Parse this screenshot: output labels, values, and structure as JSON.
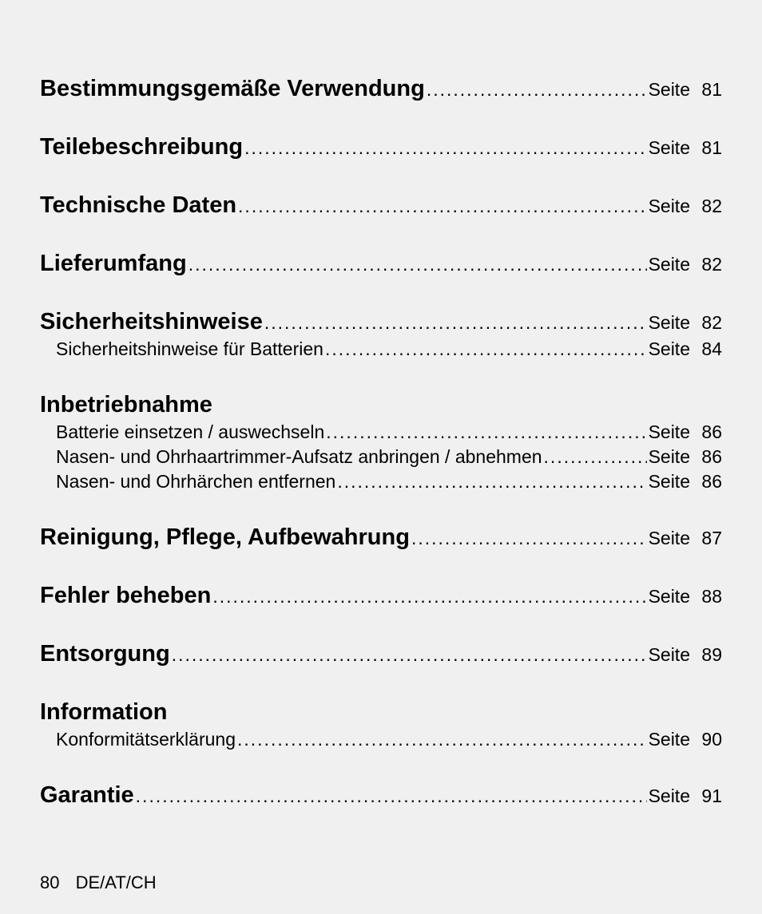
{
  "page_label": "Seite",
  "sections": [
    {
      "title": "Bestimmungsgemäße Verwendung",
      "page": "81",
      "subs": []
    },
    {
      "title": "Teilebeschreibung",
      "page": "81",
      "subs": []
    },
    {
      "title": "Technische Daten",
      "page": "82",
      "subs": []
    },
    {
      "title": "Lieferumfang",
      "page": "82",
      "subs": []
    },
    {
      "title": "Sicherheitshinweise",
      "page": "82",
      "subs": [
        {
          "label": "Sicherheitshinweise für Batterien",
          "page": "84"
        }
      ]
    },
    {
      "title": "Inbetriebnahme",
      "page": null,
      "subs": [
        {
          "label": "Batterie einsetzen / auswechseln",
          "page": "86"
        },
        {
          "label": "Nasen- und Ohrhaartrimmer-Aufsatz anbringen / abnehmen",
          "page": "86"
        },
        {
          "label": "Nasen- und Ohrhärchen entfernen",
          "page": "86"
        }
      ]
    },
    {
      "title": "Reinigung, Pflege, Aufbewahrung",
      "page": "87",
      "subs": []
    },
    {
      "title": "Fehler beheben",
      "page": "88",
      "subs": []
    },
    {
      "title": "Entsorgung",
      "page": "89",
      "subs": []
    },
    {
      "title": "Information",
      "page": null,
      "subs": [
        {
          "label": "Konformitätserklärung",
          "page": "90"
        }
      ]
    },
    {
      "title": "Garantie",
      "page": "91",
      "subs": []
    }
  ],
  "footer": {
    "page_number": "80",
    "locale": "DE/AT/CH"
  }
}
